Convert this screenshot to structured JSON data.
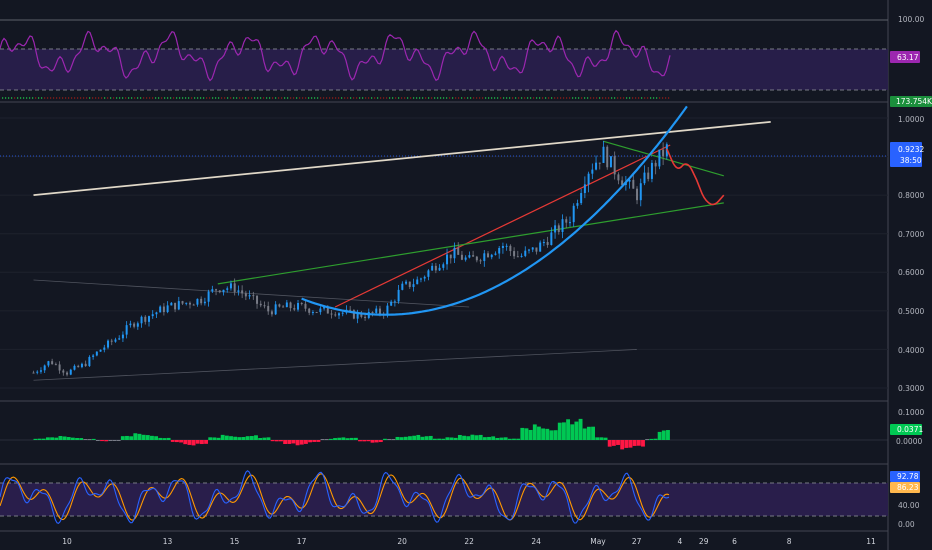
{
  "colors": {
    "background": "#131722",
    "grid_divider": "#434651",
    "axis_text": "#b2b5be",
    "candle_up": "#2196f3",
    "candle_down": "#787b86",
    "rsi_line": "#9c27b0",
    "rsi_band": "#2a1f4e",
    "macd_pos": "#00c853",
    "macd_neg": "#ff1744",
    "stoch_k": "#2962ff",
    "stoch_d": "#ff9800",
    "trend_white": "#e0d8c8",
    "trend_red": "#e53935",
    "trend_green": "#2e9e2e",
    "trend_blue_curve": "#2196f3",
    "price_badge": "#2962ff",
    "macd_badge": "#00c853",
    "volume_badge": "#1b8f3c",
    "stoch_d_badge": "#ffb74d"
  },
  "chart_data": [
    {
      "type": "line",
      "panel": "RSI",
      "y_ticks": [
        "100.00"
      ],
      "last_value": "63.17",
      "ylim": [
        0,
        100
      ],
      "band": [
        30,
        70
      ]
    },
    {
      "type": "candlestick",
      "panel": "Price",
      "y_ticks": [
        "1.0000",
        "0.9000",
        "0.8000",
        "0.7000",
        "0.6000",
        "0.5000",
        "0.4000",
        "0.3000"
      ],
      "ylim": [
        0.27,
        1.04
      ],
      "last_price": "0.9232",
      "countdown": "38:50",
      "volume_label": "173.754K",
      "x_ticks": [
        "10",
        "13",
        "15",
        "17",
        "20",
        "22",
        "24",
        "27",
        "29",
        "May",
        "4",
        "6",
        "8",
        "11"
      ],
      "price_path": [
        [
          9.0,
          0.34
        ],
        [
          9.5,
          0.37
        ],
        [
          10.0,
          0.34
        ],
        [
          10.5,
          0.36
        ],
        [
          11.0,
          0.4
        ],
        [
          11.5,
          0.43
        ],
        [
          12.0,
          0.47
        ],
        [
          12.5,
          0.49
        ],
        [
          13.0,
          0.51
        ],
        [
          13.5,
          0.52
        ],
        [
          14.0,
          0.53
        ],
        [
          14.5,
          0.56
        ],
        [
          15.0,
          0.56
        ],
        [
          15.5,
          0.53
        ],
        [
          16.0,
          0.5
        ],
        [
          16.5,
          0.51
        ],
        [
          17.0,
          0.51
        ],
        [
          17.5,
          0.5
        ],
        [
          18.0,
          0.5
        ],
        [
          18.5,
          0.49
        ],
        [
          19.0,
          0.49
        ],
        [
          19.5,
          0.5
        ],
        [
          20.0,
          0.56
        ],
        [
          20.5,
          0.58
        ],
        [
          21.0,
          0.62
        ],
        [
          21.5,
          0.65
        ],
        [
          22.0,
          0.63
        ],
        [
          22.5,
          0.65
        ],
        [
          23.0,
          0.67
        ],
        [
          23.5,
          0.64
        ],
        [
          24.0,
          0.66
        ],
        [
          24.5,
          0.7
        ],
        [
          25.0,
          0.74
        ],
        [
          25.5,
          0.86
        ],
        [
          26.0,
          0.91
        ],
        [
          26.3,
          0.87
        ],
        [
          26.6,
          0.84
        ],
        [
          27.0,
          0.8
        ],
        [
          27.3,
          0.85
        ],
        [
          27.6,
          0.89
        ],
        [
          27.9,
          0.92
        ]
      ],
      "projection_path": [
        [
          27.9,
          0.92
        ],
        [
          28.2,
          0.86
        ],
        [
          28.5,
          0.89
        ],
        [
          28.8,
          0.84
        ],
        [
          29.0,
          0.79
        ],
        [
          29.3,
          0.77
        ],
        [
          29.6,
          0.8
        ]
      ],
      "trendlines": [
        {
          "color": "white",
          "from": [
            9.0,
            0.8
          ],
          "to": [
            31.0,
            0.99
          ]
        },
        {
          "color": "red",
          "from": [
            18.0,
            0.51
          ],
          "to": [
            28.0,
            0.93
          ]
        },
        {
          "color": "green",
          "from": [
            14.5,
            0.57
          ],
          "to": [
            29.6,
            0.78
          ]
        },
        {
          "color": "green",
          "from": [
            26.0,
            0.94
          ],
          "to": [
            29.6,
            0.85
          ]
        },
        {
          "color": "grey",
          "from": [
            9.0,
            0.32
          ],
          "to": [
            27.0,
            0.4
          ]
        },
        {
          "color": "grey",
          "from": [
            9.0,
            0.58
          ],
          "to": [
            22.0,
            0.51
          ]
        }
      ],
      "parabola": {
        "vertex": [
          19.5,
          0.49
        ],
        "to": [
          28.5,
          1.03
        ]
      }
    },
    {
      "type": "bar",
      "panel": "MACD Histogram",
      "y_ticks": [
        "0.1000",
        "0.0000"
      ],
      "last_value": "0.0371",
      "zero_label": "0.0000",
      "ylim": [
        -0.06,
        0.12
      ],
      "values": [
        0.005,
        0.01,
        0.015,
        0.01,
        0.005,
        -0.005,
        0.0,
        0.015,
        0.025,
        0.02,
        0.01,
        -0.01,
        -0.02,
        -0.015,
        0.01,
        0.02,
        0.015,
        0.02,
        0.01,
        -0.005,
        -0.015,
        -0.02,
        -0.01,
        0.005,
        0.01,
        0.008,
        -0.005,
        -0.01,
        0.005,
        0.015,
        0.02,
        0.015,
        0.005,
        0.01,
        0.02,
        0.025,
        0.015,
        0.01,
        0.005,
        0.045,
        0.06,
        0.05,
        0.09,
        0.08,
        0.05,
        0.01,
        -0.025,
        -0.04,
        -0.03,
        0.005,
        0.037
      ],
      "x_range": [
        9.0,
        28.0
      ]
    },
    {
      "type": "line",
      "panel": "Stochastic",
      "y_ticks": [
        "40.00",
        "0.00"
      ],
      "k_value": "92.78",
      "d_value": "86.23",
      "ylim": [
        0,
        100
      ],
      "band": [
        20,
        80
      ]
    }
  ]
}
